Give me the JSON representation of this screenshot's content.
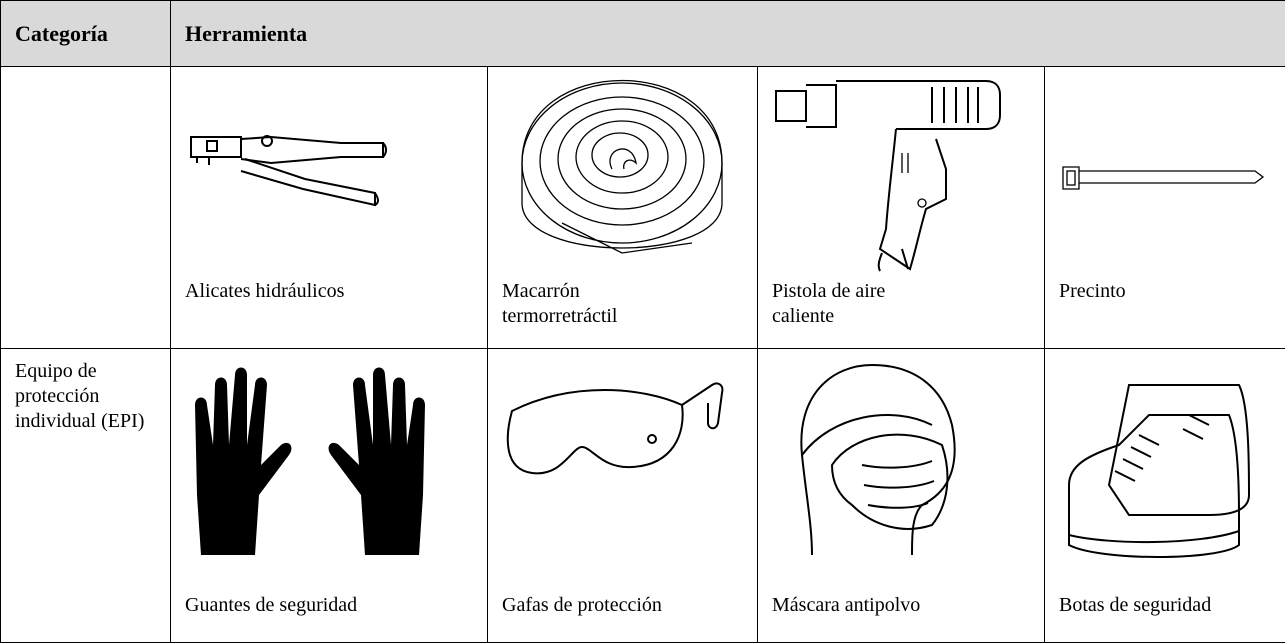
{
  "table": {
    "header": [
      "Categoría",
      "Herramienta"
    ],
    "rows": [
      {
        "tools": [
          "Alicates hidráulicos",
          "Macarrón termorretráctil",
          "Pistola de aire caliente",
          "Precinto"
        ]
      },
      {
        "category": "Equipo de protección individual (EPI)",
        "tools": [
          "Guantes de seguridad",
          "Gafas de protección",
          "Máscara antipolvo",
          "Botas de seguridad"
        ]
      }
    ]
  }
}
